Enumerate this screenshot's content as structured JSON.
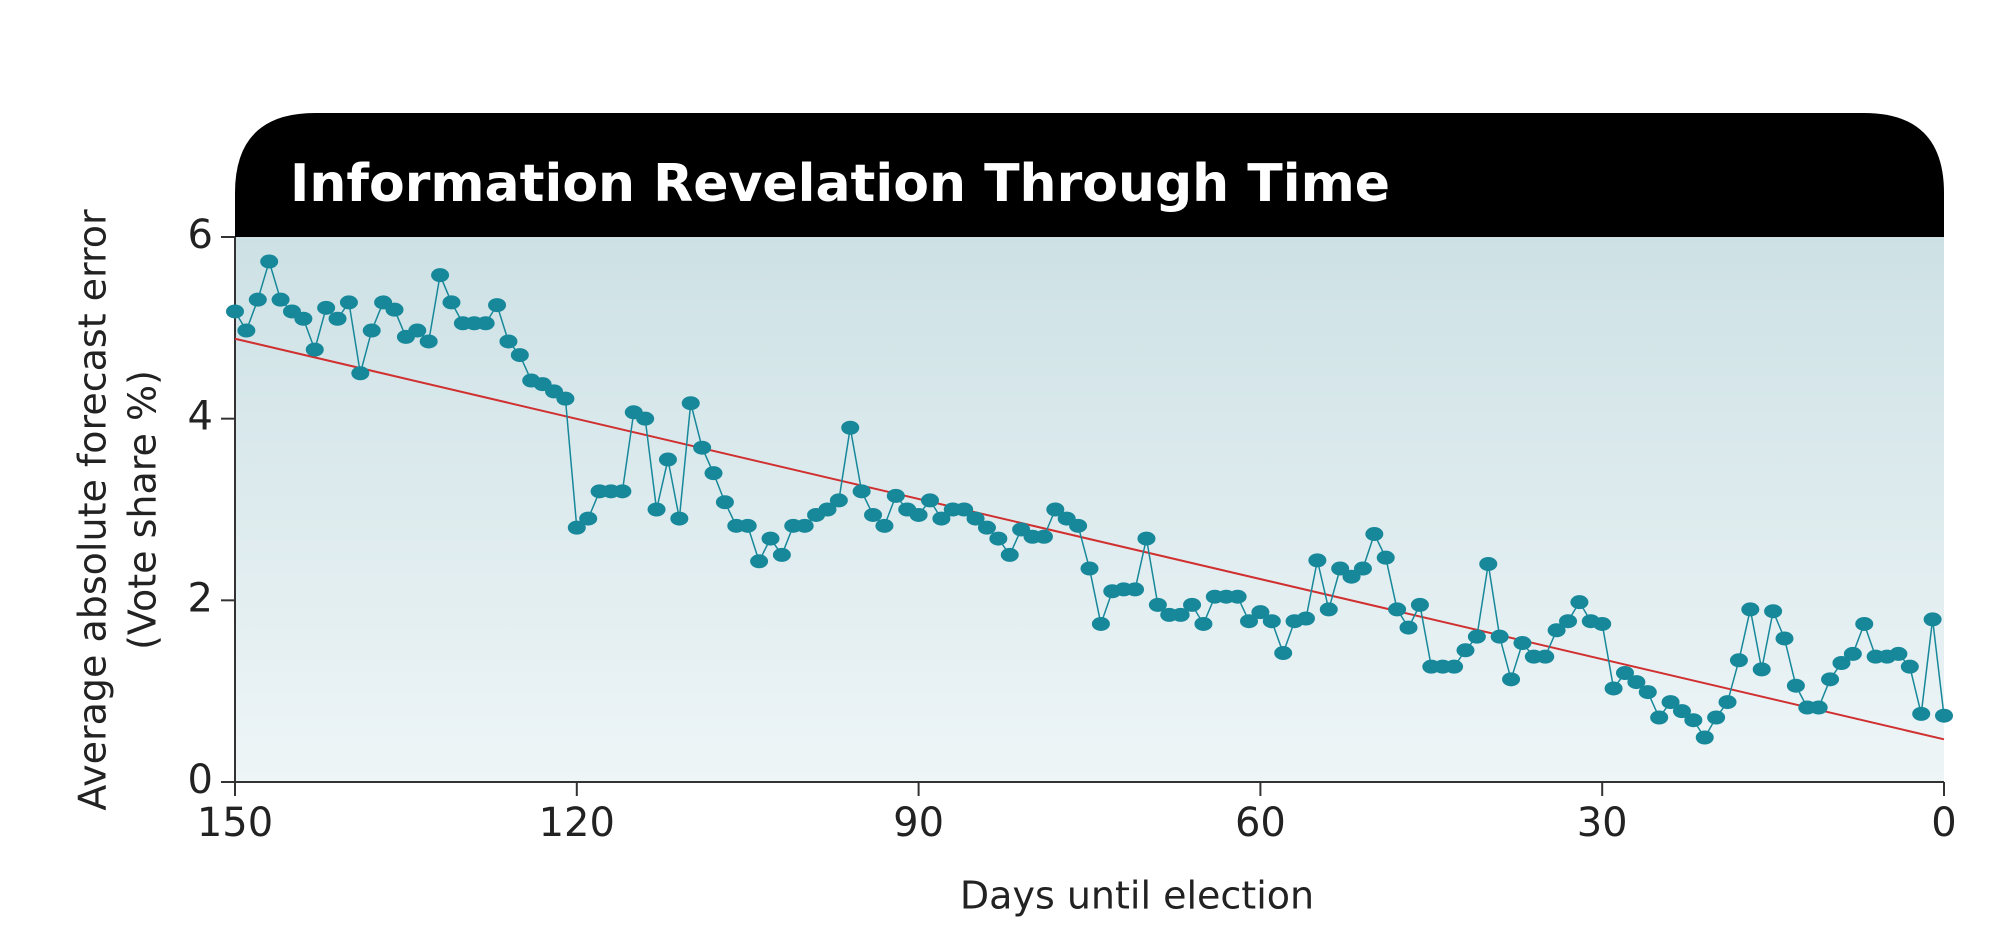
{
  "chart_data": {
    "type": "line",
    "title": "Information Revelation Through Time",
    "ylabel": [
      "Average absolute forecast error",
      "(Vote share %)"
    ],
    "xlabel": "Days until election",
    "xlim": [
      150,
      0
    ],
    "xticks": [
      150,
      120,
      90,
      60,
      30,
      0
    ],
    "ylim": [
      0,
      6
    ],
    "yticks": [
      0,
      2,
      4,
      6
    ],
    "series": [
      {
        "color": "#17889a",
        "x": [
          150,
          149,
          148,
          147,
          146,
          145,
          144,
          143,
          142,
          141,
          140,
          139,
          138,
          137,
          136,
          135,
          134,
          133,
          132,
          131,
          130,
          129,
          128,
          127,
          126,
          125,
          124,
          123,
          122,
          121,
          120,
          119,
          118,
          117,
          116,
          115,
          114,
          113,
          112,
          111,
          110,
          109,
          108,
          107,
          106,
          105,
          104,
          103,
          102,
          101,
          100,
          99,
          98,
          97,
          96,
          95,
          94,
          93,
          92,
          91,
          90,
          89,
          88,
          87,
          86,
          85,
          84,
          83,
          82,
          81,
          80,
          79,
          78,
          77,
          76,
          75,
          74,
          73,
          72,
          71,
          70,
          69,
          68,
          67,
          66,
          65,
          64,
          63,
          62,
          61,
          60,
          59,
          58,
          57,
          56,
          55,
          54,
          53,
          52,
          51,
          50,
          49,
          48,
          47,
          46,
          45,
          44,
          43,
          42,
          41,
          40,
          39,
          38,
          37,
          36,
          35,
          34,
          33,
          32,
          31,
          30,
          29,
          28,
          27,
          26,
          25,
          24,
          23,
          22,
          21,
          20,
          19,
          18,
          17,
          16,
          15,
          14,
          13,
          12,
          11,
          10,
          9,
          8,
          7,
          6,
          5,
          4,
          3,
          2,
          1,
          0
        ],
        "values": [
          5.18,
          4.97,
          5.31,
          5.73,
          5.31,
          5.18,
          5.1,
          4.76,
          5.22,
          5.1,
          5.28,
          4.5,
          4.97,
          5.28,
          5.2,
          4.9,
          4.97,
          4.85,
          5.58,
          5.28,
          5.05,
          5.05,
          5.05,
          5.25,
          4.85,
          4.7,
          4.42,
          4.38,
          4.3,
          4.22,
          2.8,
          2.9,
          3.2,
          3.2,
          3.2,
          4.07,
          4.0,
          3.0,
          3.55,
          2.9,
          4.17,
          3.68,
          3.4,
          3.08,
          2.82,
          2.82,
          2.43,
          2.68,
          2.5,
          2.82,
          2.82,
          2.94,
          3.0,
          3.1,
          3.9,
          3.2,
          2.94,
          2.82,
          3.15,
          3.0,
          2.94,
          3.1,
          2.9,
          3.0,
          3.0,
          2.9,
          2.8,
          2.68,
          2.5,
          2.78,
          2.7,
          2.7,
          3.0,
          2.9,
          2.82,
          2.35,
          1.74,
          2.1,
          2.12,
          2.12,
          2.68,
          1.95,
          1.84,
          1.84,
          1.95,
          1.74,
          2.04,
          2.04,
          2.04,
          1.77,
          1.87,
          1.77,
          1.42,
          1.77,
          1.8,
          2.44,
          1.9,
          2.35,
          2.26,
          2.35,
          2.73,
          2.47,
          1.9,
          1.7,
          1.95,
          1.27,
          1.27,
          1.27,
          1.45,
          1.6,
          2.4,
          1.6,
          1.13,
          1.53,
          1.38,
          1.38,
          1.67,
          1.77,
          1.98,
          1.77,
          1.74,
          1.03,
          1.2,
          1.1,
          0.99,
          0.71,
          0.88,
          0.78,
          0.68,
          0.49,
          0.71,
          0.88,
          1.34,
          1.9,
          1.24,
          1.88,
          1.58,
          1.06,
          0.82,
          0.82,
          1.13,
          1.31,
          1.41,
          1.74,
          1.38,
          1.38,
          1.41,
          1.27,
          0.75,
          1.79,
          0.73
        ]
      }
    ],
    "trend_line": {
      "color": "#d03030",
      "x": [
        150,
        0
      ],
      "values": [
        4.88,
        0.47
      ]
    }
  }
}
